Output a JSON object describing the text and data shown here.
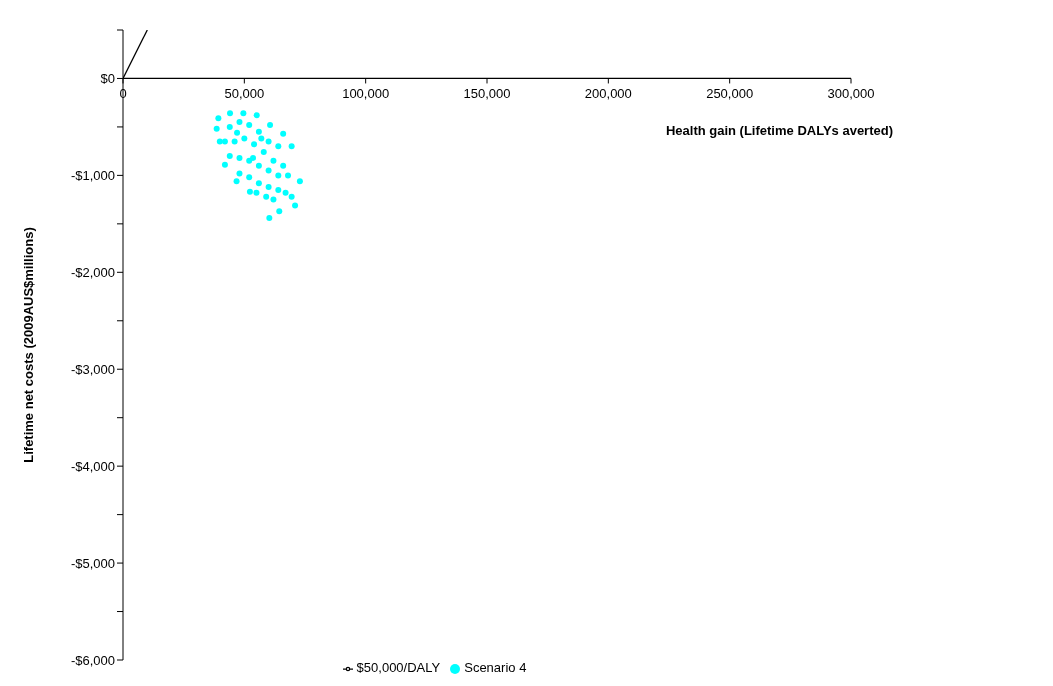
{
  "chart_data": {
    "type": "scatter",
    "xlabel": "Health gain (Lifetime DALYs  averted)",
    "ylabel": "Lifetime net costs  (2009AUS$millions)",
    "xlim": [
      0,
      300000
    ],
    "xticks": [
      0,
      {
        "value": 50000,
        "label": "50,000"
      },
      {
        "value": 100000,
        "label": "100,000"
      },
      {
        "value": 150000,
        "label": "150,000"
      },
      {
        "value": 200000,
        "label": "200,000"
      },
      {
        "value": 250000,
        "label": "250,000"
      },
      {
        "value": 300000,
        "label": "300,000"
      }
    ],
    "ylim": [
      -6000,
      500
    ],
    "yticks": [
      {
        "value": 500,
        "label": null
      },
      {
        "value": 0,
        "label": "$0"
      },
      {
        "value": -500,
        "label": null
      },
      {
        "value": -1000,
        "label": "-$1,000"
      },
      {
        "value": -1500,
        "label": null
      },
      {
        "value": -2000,
        "label": "-$2,000"
      },
      {
        "value": -2500,
        "label": null
      },
      {
        "value": -3000,
        "label": "-$3,000"
      },
      {
        "value": -3500,
        "label": null
      },
      {
        "value": -4000,
        "label": "-$4,000"
      },
      {
        "value": -4500,
        "label": null
      },
      {
        "value": -5000,
        "label": "-$5,000"
      },
      {
        "value": -5500,
        "label": null
      },
      {
        "value": -6000,
        "label": "-$6,000"
      }
    ],
    "legend": "bottom",
    "series": [
      {
        "name": "$50,000/DALY",
        "type": "line",
        "marker": "none",
        "color": "#000000",
        "x": [
          0,
          10000
        ],
        "values": [
          0,
          500
        ]
      },
      {
        "name": "Scenario 4",
        "type": "scatter",
        "marker": "circle",
        "color": "#00ffff",
        "x": [
          39300,
          44100,
          49600,
          55100,
          60600,
          66000,
          69500,
          72900,
          69500,
          70900,
          64400,
          60300,
          62000,
          52300,
          46800,
          42000,
          39900,
          38600,
          44000,
          48000,
          52000,
          56000,
          60000,
          64000,
          42000,
          46000,
          50000,
          54000,
          58000,
          62000,
          66000,
          44000,
          48000,
          52000,
          56000,
          60000,
          64000,
          68000,
          48000,
          52000,
          56000,
          60000,
          64000,
          67000,
          55000,
          59000,
          53600,
          47000,
          57000
        ],
        "values": [
          -410,
          -360,
          -360,
          -380,
          -480,
          -570,
          -700,
          -1060,
          -1220,
          -1310,
          -1370,
          -1440,
          -1250,
          -1170,
          -1060,
          -890,
          -650,
          -520,
          -500,
          -450,
          -480,
          -550,
          -650,
          -700,
          -650,
          -650,
          -620,
          -680,
          -760,
          -850,
          -900,
          -800,
          -820,
          -850,
          -900,
          -950,
          -1000,
          -1000,
          -980,
          -1020,
          -1080,
          -1120,
          -1150,
          -1180,
          -1180,
          -1220,
          -820,
          -560,
          -620
        ]
      }
    ]
  }
}
